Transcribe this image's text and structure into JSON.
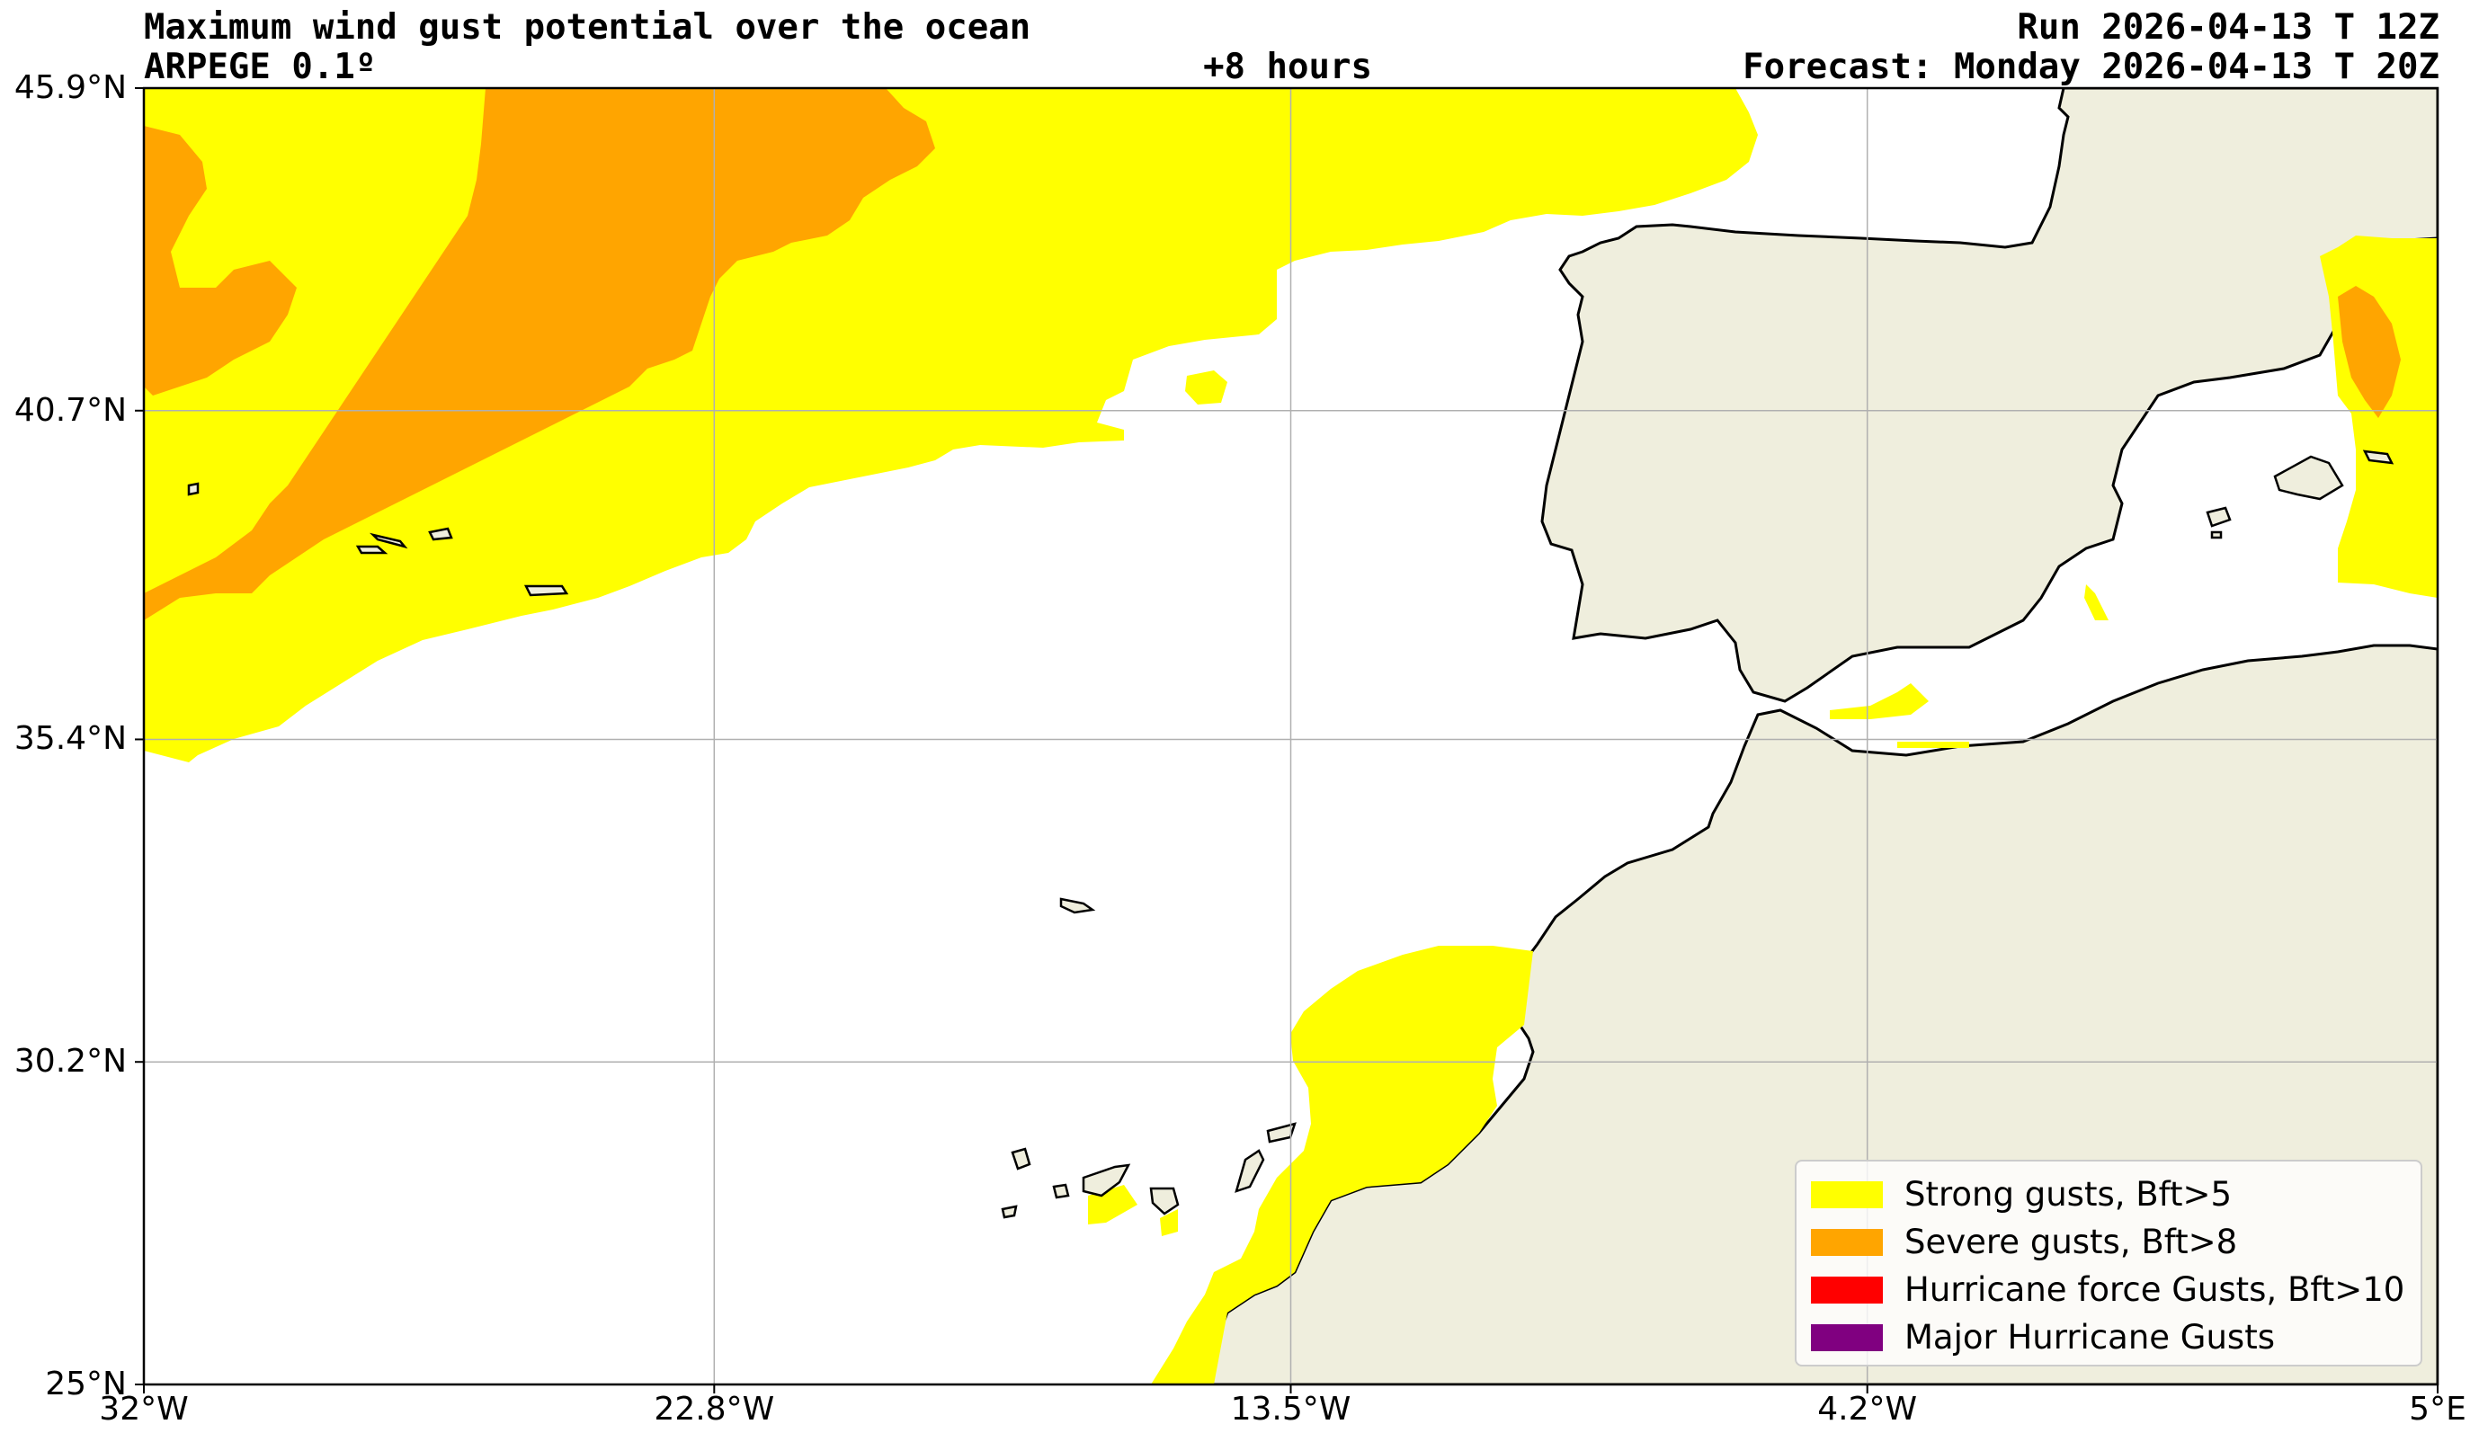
{
  "header": {
    "title": "Maximum wind gust potential over the ocean",
    "model": "ARPEGE 0.1º",
    "lead_time": "+8 hours",
    "run": "Run 2026-04-13 T 12Z",
    "forecast": "Forecast: Monday 2026-04-13 T 20Z"
  },
  "map": {
    "lon_range": [
      -32,
      5
    ],
    "lat_range": [
      25,
      45.9
    ],
    "lat_ticks": [
      {
        "value": 45.9,
        "label": "45.9°N"
      },
      {
        "value": 40.7,
        "label": "40.7°N"
      },
      {
        "value": 35.4,
        "label": "35.4°N"
      },
      {
        "value": 30.2,
        "label": "30.2°N"
      },
      {
        "value": 25,
        "label": "25°N"
      }
    ],
    "lon_ticks": [
      {
        "value": -32,
        "label": "32°W"
      },
      {
        "value": -22.8,
        "label": "22.8°W"
      },
      {
        "value": -13.5,
        "label": "13.5°W"
      },
      {
        "value": -4.2,
        "label": "4.2°W"
      },
      {
        "value": 5,
        "label": "5°E"
      }
    ],
    "grid": true,
    "colors": {
      "land": "#efeedd",
      "strong": "#ffff00",
      "severe": "#ffa500",
      "hurricane": "#ff0000",
      "major": "#800080",
      "coast": "#000000",
      "grid": "#b0b0b0"
    }
  },
  "legend": {
    "placement": "lower-right",
    "items": [
      {
        "label": "Strong gusts, Bft>5",
        "color": "#ffff00"
      },
      {
        "label": "Severe gusts, Bft>8",
        "color": "#ffa500"
      },
      {
        "label": "Hurricane force Gusts, Bft>10",
        "color": "#ff0000"
      },
      {
        "label": "Major Hurricane Gusts",
        "color": "#800080"
      }
    ]
  }
}
